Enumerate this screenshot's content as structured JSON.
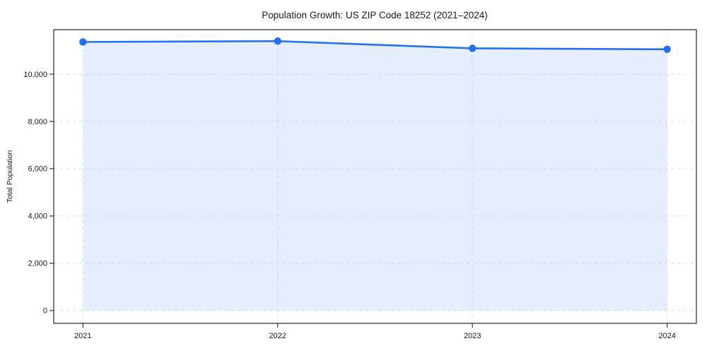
{
  "chart": {
    "title": "Population Growth: US ZIP Code 18252 (2021–2024)",
    "ylabel": "Total Population"
  },
  "chart_data": {
    "type": "line",
    "title": "Population Growth: US ZIP Code 18252 (2021–2024)",
    "xlabel": "",
    "ylabel": "Total Population",
    "x": [
      2021,
      2022,
      2023,
      2024
    ],
    "series": [
      {
        "name": "Total Population",
        "values": [
          11360,
          11395,
          11090,
          11050
        ]
      }
    ],
    "marker": "circle",
    "area_fill": true,
    "area_baseline": 0,
    "grid": true,
    "grid_style": "dashed",
    "legend": false,
    "xlim": [
      2020.85,
      2024.15
    ],
    "ylim": [
      -540,
      11880
    ],
    "yticks": [
      0,
      2000,
      4000,
      6000,
      8000,
      10000
    ],
    "ytick_labels": [
      "0",
      "2,000",
      "4,000",
      "6,000",
      "8,000",
      "10,000"
    ],
    "xtick_labels": [
      "2021",
      "2022",
      "2023",
      "2024"
    ],
    "colors": {
      "line": "#2670e8",
      "marker": "#2670e8",
      "fill": "#2670e8",
      "fill_opacity": 0.12,
      "grid": "#cfcfcf",
      "spine": "#262626",
      "text": "#1a1a1a",
      "background": "#ffffff"
    }
  }
}
